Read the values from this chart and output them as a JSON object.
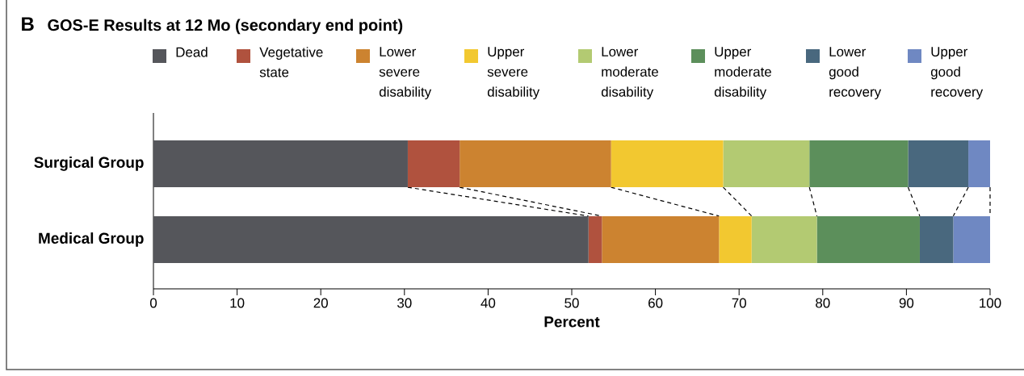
{
  "chart_data": {
    "type": "bar",
    "orientation": "horizontal",
    "stacked": true,
    "title": "GOS-E Results at 12 Mo (secondary end point)",
    "annotations": [
      "B"
    ],
    "xlabel": "Percent",
    "categories": [
      "Surgical Group",
      "Medical Group"
    ],
    "series": [
      {
        "name": "Dead",
        "color": "#55565b",
        "values": [
          30.4,
          52.0
        ]
      },
      {
        "name": "Vegetative state",
        "color": "#b0523e",
        "values": [
          6.2,
          1.6
        ]
      },
      {
        "name": "Lower severe disability",
        "color": "#cc8330",
        "values": [
          18.1,
          14.0
        ]
      },
      {
        "name": "Upper severe disability",
        "color": "#f2c830",
        "values": [
          13.4,
          3.9
        ]
      },
      {
        "name": "Lower moderate disability",
        "color": "#b3ca72",
        "values": [
          10.3,
          7.8
        ]
      },
      {
        "name": "Upper moderate disability",
        "color": "#5c8f5b",
        "values": [
          11.8,
          12.3
        ]
      },
      {
        "name": "Lower good recovery",
        "color": "#49687e",
        "values": [
          7.2,
          4.0
        ]
      },
      {
        "name": "Upper good recovery",
        "color": "#6f88c2",
        "values": [
          2.6,
          4.4
        ]
      }
    ],
    "xlim": [
      0,
      100
    ],
    "xticks": [
      0,
      10,
      20,
      30,
      40,
      50,
      60,
      70,
      80,
      90,
      100
    ],
    "legend": "top",
    "grid": false
  }
}
